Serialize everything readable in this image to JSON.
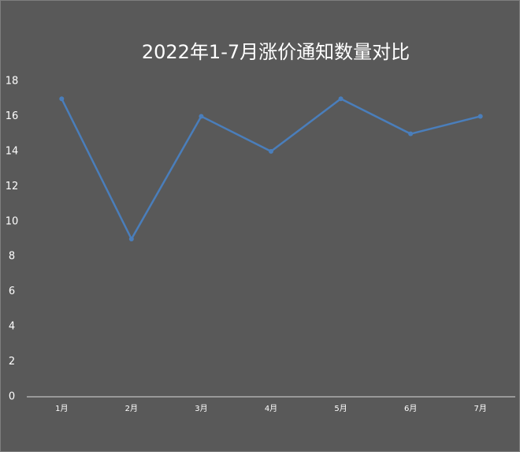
{
  "chart_data": {
    "type": "line",
    "title": "2022年1-7月涨价通知数量对比",
    "categories": [
      "1月",
      "2月",
      "3月",
      "4月",
      "5月",
      "6月",
      "7月"
    ],
    "values": [
      17,
      9,
      16,
      14,
      17,
      15,
      16
    ],
    "color": "#4a7ebb",
    "ylim": [
      0,
      18
    ],
    "yticks": [
      0,
      2,
      4,
      6,
      8,
      10,
      12,
      14,
      16,
      18
    ],
    "grid": false
  }
}
